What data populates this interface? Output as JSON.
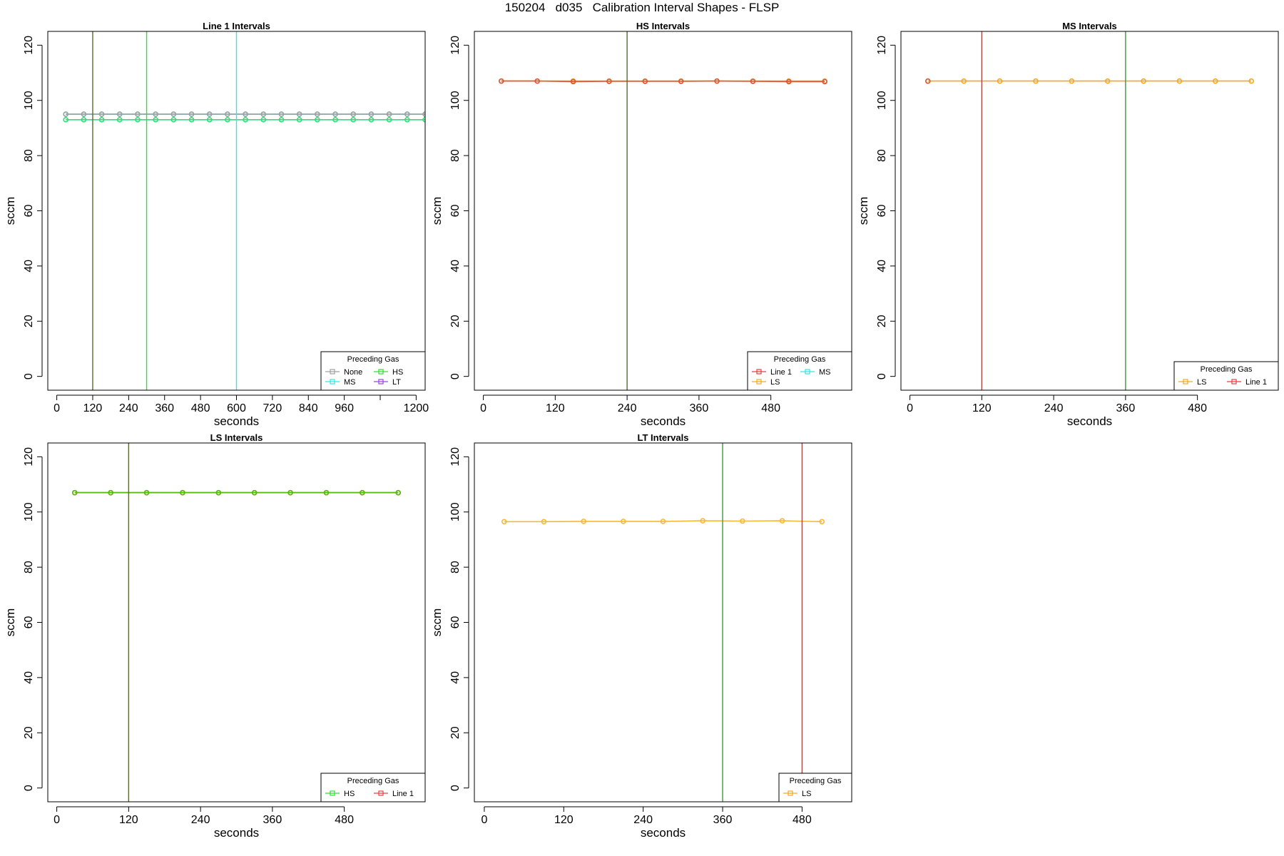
{
  "figure_title": "150204   d035   Calibration Interval Shapes - FLSP",
  "chart_data": [
    {
      "type": "line",
      "title": "Line 1 Intervals",
      "xlabel": "seconds",
      "ylabel": "sccm",
      "xlim": [
        -30,
        1230
      ],
      "ylim": [
        -5,
        125
      ],
      "xticks": [
        0,
        120,
        240,
        360,
        480,
        600,
        720,
        840,
        960,
        1080,
        1200
      ],
      "xtick_labels": [
        "0",
        "120",
        "240",
        "360",
        "480",
        "600",
        "720",
        "840",
        "960",
        "",
        "1200"
      ],
      "yticks": [
        0,
        20,
        40,
        60,
        80,
        100,
        120
      ],
      "vlines": [
        {
          "x": 120,
          "color": "#556B2F"
        },
        {
          "x": 300,
          "color": "#33DD33"
        },
        {
          "x": 600,
          "color": "#33E6E6"
        }
      ],
      "legend": {
        "title": "Preceding Gas",
        "position": "bottom-right",
        "columns": 2,
        "entries": [
          {
            "label": "None",
            "color": "#A0A0A0"
          },
          {
            "label": "HS",
            "color": "#33DD33"
          },
          {
            "label": "MS",
            "color": "#33E6E6"
          },
          {
            "label": "LT",
            "color": "#A040E0"
          }
        ]
      },
      "series": [
        {
          "color": "#33E6E6",
          "x": [
            30,
            90,
            150,
            210,
            270,
            330,
            390,
            450,
            510,
            570,
            630,
            690,
            750,
            810,
            870,
            930,
            990,
            1050,
            1110,
            1170,
            1230
          ],
          "y": [
            95,
            95,
            95,
            95,
            95,
            95,
            95,
            95,
            95,
            95,
            95,
            95,
            95,
            95,
            95,
            95,
            95,
            95,
            95,
            95,
            95
          ]
        },
        {
          "color": "#A0A0A0",
          "x": [
            30,
            90,
            150,
            210,
            270,
            330,
            390,
            450,
            510,
            570,
            630,
            690,
            750,
            810,
            870,
            930,
            990,
            1050,
            1110,
            1170,
            1230
          ],
          "y": [
            95,
            95,
            95,
            95,
            95,
            95,
            95,
            95,
            95,
            95,
            95,
            95,
            95,
            95,
            95,
            95,
            95,
            95,
            95,
            95,
            95
          ]
        },
        {
          "color": "#33DD77",
          "x": [
            30,
            90,
            150,
            210,
            270,
            330,
            390,
            450,
            510,
            570,
            630,
            690,
            750,
            810,
            870,
            930,
            990,
            1050,
            1110,
            1170,
            1230
          ],
          "y": [
            93,
            93,
            93,
            93,
            93,
            93,
            93,
            93,
            93,
            93,
            93,
            93,
            93,
            93,
            93,
            93,
            93,
            93,
            93,
            93,
            93
          ]
        }
      ]
    },
    {
      "type": "line",
      "title": "HS Intervals",
      "xlabel": "seconds",
      "ylabel": "sccm",
      "xlim": [
        -15,
        615
      ],
      "ylim": [
        -5,
        125
      ],
      "xticks": [
        0,
        120,
        240,
        360,
        480
      ],
      "xtick_labels": [
        "0",
        "120",
        "240",
        "360",
        "480"
      ],
      "yticks": [
        0,
        20,
        40,
        60,
        80,
        100,
        120
      ],
      "vlines": [
        {
          "x": 240,
          "color": "#556B2F"
        }
      ],
      "legend": {
        "title": "Preceding Gas",
        "position": "bottom-right",
        "columns": 2,
        "entries": [
          {
            "label": "Line 1",
            "color": "#E84040"
          },
          {
            "label": "MS",
            "color": "#33E6E6"
          },
          {
            "label": "LS",
            "color": "#F5A623"
          }
        ]
      },
      "series": [
        {
          "color": "#F5A623",
          "x": [
            30,
            90,
            150,
            210,
            270,
            330,
            390,
            450,
            510,
            570
          ],
          "y": [
            107,
            107,
            107,
            107,
            107,
            107,
            107,
            107,
            107,
            107
          ]
        },
        {
          "color": "#D9583A",
          "x": [
            30,
            90,
            150,
            210,
            270,
            330,
            390,
            450,
            510,
            570
          ],
          "y": [
            107,
            107,
            106.8,
            106.9,
            106.9,
            106.9,
            107,
            106.9,
            106.8,
            106.8
          ]
        }
      ]
    },
    {
      "type": "line",
      "title": "MS Intervals",
      "xlabel": "seconds",
      "ylabel": "sccm",
      "xlim": [
        -15,
        615
      ],
      "ylim": [
        -5,
        125
      ],
      "xticks": [
        0,
        120,
        240,
        360,
        480
      ],
      "xtick_labels": [
        "0",
        "120",
        "240",
        "360",
        "480"
      ],
      "yticks": [
        0,
        20,
        40,
        60,
        80,
        100,
        120
      ],
      "vlines": [
        {
          "x": 120,
          "color": "#B04848"
        },
        {
          "x": 360,
          "color": "#3C9A3C"
        }
      ],
      "legend": {
        "title": "Preceding Gas",
        "position": "bottom-right",
        "columns": 2,
        "entries": [
          {
            "label": "LS",
            "color": "#F5A623"
          },
          {
            "label": "Line 1",
            "color": "#E84040"
          }
        ]
      },
      "series": [
        {
          "color": "#F5A623",
          "x": [
            30,
            90,
            150,
            210,
            270,
            330,
            390,
            450,
            510,
            570
          ],
          "y": [
            107,
            107,
            107,
            107,
            107,
            107,
            107,
            107,
            107,
            107
          ]
        },
        {
          "color": "#D9583A",
          "x": [
            30
          ],
          "y": [
            107
          ]
        }
      ]
    },
    {
      "type": "line",
      "title": "LS Intervals",
      "xlabel": "seconds",
      "ylabel": "sccm",
      "xlim": [
        -15,
        615
      ],
      "ylim": [
        -5,
        125
      ],
      "xticks": [
        0,
        120,
        240,
        360,
        480
      ],
      "xtick_labels": [
        "0",
        "120",
        "240",
        "360",
        "480"
      ],
      "yticks": [
        0,
        20,
        40,
        60,
        80,
        100,
        120
      ],
      "vlines": [
        {
          "x": 120,
          "color": "#556B2F"
        }
      ],
      "legend": {
        "title": "Preceding Gas",
        "position": "bottom-right",
        "columns": 2,
        "entries": [
          {
            "label": "HS",
            "color": "#33DD33"
          },
          {
            "label": "Line 1",
            "color": "#E84040"
          }
        ]
      },
      "series": [
        {
          "color": "#E84040",
          "x": [
            30,
            90,
            150,
            210,
            270,
            330,
            390,
            450,
            510,
            570
          ],
          "y": [
            107,
            107,
            107,
            107,
            107,
            107,
            107,
            107,
            107,
            107
          ]
        },
        {
          "color": "#55BB11",
          "x": [
            30,
            90,
            150,
            210,
            270,
            330,
            390,
            450,
            510,
            570
          ],
          "y": [
            107,
            107,
            107,
            107,
            107,
            107,
            107,
            107,
            107,
            107
          ]
        }
      ]
    },
    {
      "type": "line",
      "title": "LT Intervals",
      "xlabel": "seconds",
      "ylabel": "sccm",
      "xlim": [
        -15,
        555
      ],
      "ylim": [
        -5,
        125
      ],
      "xticks": [
        0,
        120,
        240,
        360,
        480
      ],
      "xtick_labels": [
        "0",
        "120",
        "240",
        "360",
        "480"
      ],
      "yticks": [
        0,
        20,
        40,
        60,
        80,
        100,
        120
      ],
      "vlines": [
        {
          "x": 360,
          "color": "#3C9A3C"
        },
        {
          "x": 480,
          "color": "#B04848"
        }
      ],
      "legend": {
        "title": "Preceding Gas",
        "position": "bottom-right",
        "columns": 1,
        "entries": [
          {
            "label": "LS",
            "color": "#F5A623"
          }
        ]
      },
      "series": [
        {
          "color": "#F5B83A",
          "x": [
            30,
            90,
            150,
            210,
            270,
            330,
            390,
            450,
            510
          ],
          "y": [
            96.5,
            96.5,
            96.6,
            96.6,
            96.6,
            96.8,
            96.7,
            96.8,
            96.5
          ]
        }
      ]
    }
  ]
}
